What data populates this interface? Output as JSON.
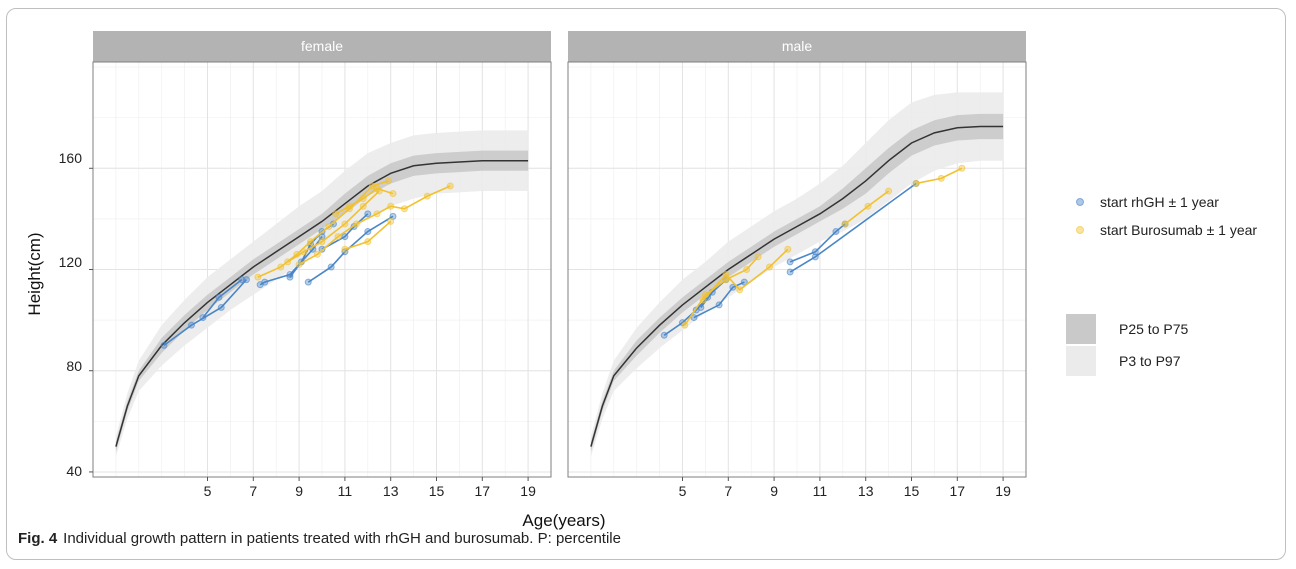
{
  "caption": {
    "label": "Fig. 4",
    "text": "Individual growth pattern in patients treated with rhGH and burosumab. P: percentile"
  },
  "colors": {
    "rhgh": "#4a86c8",
    "burosumab": "#f2c12e",
    "band_inner": "#c9c9c9",
    "band_outer": "#ebebeb",
    "median": "#333333",
    "strip": "#b3b3b3"
  },
  "chart_data": {
    "type": "line",
    "xlabel": "Age(years)",
    "ylabel": "Height(cm)",
    "xlim": [
      0,
      20
    ],
    "ylim": [
      38,
      202
    ],
    "x_ticks": [
      5,
      7,
      9,
      11,
      13,
      15,
      17,
      19
    ],
    "y_ticks": [
      40,
      80,
      120,
      160
    ],
    "grid": true,
    "legend_position": "right",
    "legend": {
      "series": [
        {
          "name": "start rhGH ± 1 year",
          "color_key": "rhgh"
        },
        {
          "name": "start Burosumab ± 1 year",
          "color_key": "burosumab"
        }
      ],
      "bands": [
        {
          "name": "P25 to P75",
          "color_key": "band_inner"
        },
        {
          "name": "P3 to P97",
          "color_key": "band_outer"
        }
      ]
    },
    "panels": [
      {
        "title": "female",
        "reference": {
          "ages": [
            1,
            1.5,
            2,
            3,
            4,
            5,
            6,
            7,
            8,
            9,
            10,
            11,
            12,
            13,
            14,
            15,
            16,
            17,
            18,
            19
          ],
          "median": [
            50,
            66,
            78,
            90,
            99,
            107,
            114,
            121,
            127,
            133,
            139,
            146,
            153,
            158,
            161,
            162,
            162.5,
            163,
            163,
            163
          ],
          "p25_p75": [
            [
              48,
              52
            ],
            [
              64,
              68
            ],
            [
              76,
              80
            ],
            [
              87,
              93
            ],
            [
              96,
              102
            ],
            [
              104,
              110
            ],
            [
              111,
              117
            ],
            [
              118,
              124
            ],
            [
              124,
              130
            ],
            [
              130,
              136
            ],
            [
              136,
              142
            ],
            [
              142,
              150
            ],
            [
              149,
              157
            ],
            [
              154,
              162
            ],
            [
              157,
              165
            ],
            [
              158,
              166
            ],
            [
              158.5,
              166.5
            ],
            [
              159,
              167
            ],
            [
              159,
              167
            ],
            [
              159,
              167
            ]
          ],
          "p3_p97": [
            [
              46,
              54
            ],
            [
              61,
              71
            ],
            [
              72,
              84
            ],
            [
              82,
              98
            ],
            [
              90,
              108
            ],
            [
              97,
              117
            ],
            [
              104,
              124
            ],
            [
              110,
              131
            ],
            [
              116,
              138
            ],
            [
              122,
              145
            ],
            [
              128,
              151
            ],
            [
              134,
              159
            ],
            [
              140,
              166
            ],
            [
              145,
              170
            ],
            [
              148,
              173
            ],
            [
              150,
              174
            ],
            [
              150.5,
              174.5
            ],
            [
              151,
              175
            ],
            [
              151,
              175
            ],
            [
              151,
              175
            ]
          ]
        },
        "trajectories": [
          {
            "series": "rhgh",
            "points": [
              [
                3.1,
                90
              ],
              [
                4.3,
                98
              ],
              [
                5.6,
                105
              ],
              [
                6.7,
                116
              ]
            ]
          },
          {
            "series": "rhgh",
            "points": [
              [
                7.3,
                114
              ],
              [
                7.5,
                115
              ],
              [
                8.6,
                118
              ],
              [
                9.6,
                128
              ],
              [
                10.0,
                133
              ]
            ]
          },
          {
            "series": "rhgh",
            "points": [
              [
                8.6,
                117
              ],
              [
                9.1,
                123
              ],
              [
                9.5,
                130
              ],
              [
                10.0,
                135
              ],
              [
                10.5,
                138
              ]
            ]
          },
          {
            "series": "rhgh",
            "points": [
              [
                9.4,
                115
              ],
              [
                10.4,
                121
              ],
              [
                11.0,
                127
              ],
              [
                12.0,
                135
              ],
              [
                13.1,
                141
              ]
            ]
          },
          {
            "series": "rhgh",
            "points": [
              [
                10.0,
                128
              ],
              [
                11.0,
                133
              ],
              [
                11.4,
                137
              ],
              [
                12.0,
                142
              ]
            ]
          },
          {
            "series": "rhgh",
            "points": [
              [
                4.8,
                101
              ],
              [
                5.5,
                109
              ],
              [
                6.5,
                116
              ]
            ]
          },
          {
            "series": "burosumab",
            "points": [
              [
                7.2,
                117
              ],
              [
                8.2,
                121
              ],
              [
                8.9,
                126
              ],
              [
                9.5,
                131
              ],
              [
                10.3,
                137
              ],
              [
                11.2,
                144
              ],
              [
                12.2,
                153
              ],
              [
                12.9,
                155
              ]
            ]
          },
          {
            "series": "burosumab",
            "points": [
              [
                8.5,
                123
              ],
              [
                9.2,
                127
              ],
              [
                10.0,
                131
              ],
              [
                11.0,
                138
              ],
              [
                11.8,
                145
              ],
              [
                12.5,
                151
              ]
            ]
          },
          {
            "series": "burosumab",
            "points": [
              [
                9.0,
                122
              ],
              [
                9.8,
                126
              ],
              [
                10.7,
                133
              ],
              [
                11.5,
                138
              ],
              [
                12.4,
                142
              ],
              [
                13.0,
                145
              ],
              [
                13.6,
                144
              ],
              [
                14.6,
                149
              ],
              [
                15.6,
                153
              ]
            ]
          },
          {
            "series": "burosumab",
            "points": [
              [
                11.0,
                128
              ],
              [
                12.0,
                131
              ],
              [
                13.0,
                139
              ]
            ]
          },
          {
            "series": "burosumab",
            "points": [
              [
                10.6,
                142
              ],
              [
                11.2,
                145
              ],
              [
                11.8,
                148
              ],
              [
                12.4,
                152
              ],
              [
                13.1,
                150
              ]
            ]
          }
        ]
      },
      {
        "title": "male",
        "reference": {
          "ages": [
            1,
            1.5,
            2,
            3,
            4,
            5,
            6,
            7,
            8,
            9,
            10,
            11,
            12,
            13,
            14,
            15,
            16,
            17,
            18,
            19
          ],
          "median": [
            50,
            66,
            78,
            89,
            98,
            106,
            113,
            120,
            126,
            132,
            137,
            142,
            148,
            155,
            163,
            170,
            174,
            176,
            176.5,
            176.5
          ],
          "p25_p75": [
            [
              48,
              52
            ],
            [
              64,
              68
            ],
            [
              76,
              80
            ],
            [
              86,
              92
            ],
            [
              95,
              101
            ],
            [
              103,
              109
            ],
            [
              110,
              116
            ],
            [
              117,
              123
            ],
            [
              123,
              129
            ],
            [
              129,
              135
            ],
            [
              134,
              140
            ],
            [
              139,
              145
            ],
            [
              144,
              152
            ],
            [
              150,
              160
            ],
            [
              158,
              168
            ],
            [
              165,
              175
            ],
            [
              169,
              179
            ],
            [
              171,
              181
            ],
            [
              171.5,
              181.5
            ],
            [
              171.5,
              181.5
            ]
          ],
          "p3_p97": [
            [
              46,
              54
            ],
            [
              61,
              71
            ],
            [
              72,
              84
            ],
            [
              81,
              97
            ],
            [
              89,
              107
            ],
            [
              96,
              116
            ],
            [
              103,
              123
            ],
            [
              109,
              131
            ],
            [
              115,
              137
            ],
            [
              121,
              143
            ],
            [
              126,
              148
            ],
            [
              131,
              154
            ],
            [
              135,
              161
            ],
            [
              140,
              170
            ],
            [
              147,
              179
            ],
            [
              154,
              186
            ],
            [
              159,
              189
            ],
            [
              162,
              190
            ],
            [
              163,
              190
            ],
            [
              163,
              190
            ]
          ]
        },
        "trajectories": [
          {
            "series": "rhgh",
            "points": [
              [
                4.2,
                94
              ],
              [
                5.0,
                99
              ],
              [
                5.6,
                104
              ],
              [
                6.1,
                109
              ]
            ]
          },
          {
            "series": "rhgh",
            "points": [
              [
                5.5,
                101
              ],
              [
                6.6,
                106
              ],
              [
                7.2,
                113
              ],
              [
                7.7,
                115
              ]
            ]
          },
          {
            "series": "rhgh",
            "points": [
              [
                5.8,
                105
              ],
              [
                6.3,
                111
              ],
              [
                6.9,
                116
              ]
            ]
          },
          {
            "series": "rhgh",
            "points": [
              [
                9.7,
                119
              ],
              [
                10.8,
                125
              ],
              [
                15.2,
                154
              ]
            ]
          },
          {
            "series": "rhgh",
            "points": [
              [
                9.7,
                123
              ],
              [
                10.8,
                127
              ],
              [
                11.7,
                135
              ],
              [
                12.1,
                138
              ]
            ]
          },
          {
            "series": "burosumab",
            "points": [
              [
                5.1,
                98
              ],
              [
                6.0,
                110
              ],
              [
                6.9,
                116
              ],
              [
                7.8,
                120
              ],
              [
                8.3,
                125
              ]
            ]
          },
          {
            "series": "burosumab",
            "points": [
              [
                5.9,
                108
              ],
              [
                6.9,
                118
              ],
              [
                7.5,
                112
              ],
              [
                8.8,
                121
              ],
              [
                9.6,
                128
              ]
            ]
          },
          {
            "series": "burosumab",
            "points": [
              [
                12.1,
                138
              ],
              [
                13.1,
                145
              ],
              [
                14.0,
                151
              ]
            ]
          },
          {
            "series": "burosumab",
            "points": [
              [
                15.2,
                154
              ],
              [
                16.3,
                156
              ],
              [
                17.2,
                160
              ]
            ]
          }
        ]
      }
    ]
  }
}
